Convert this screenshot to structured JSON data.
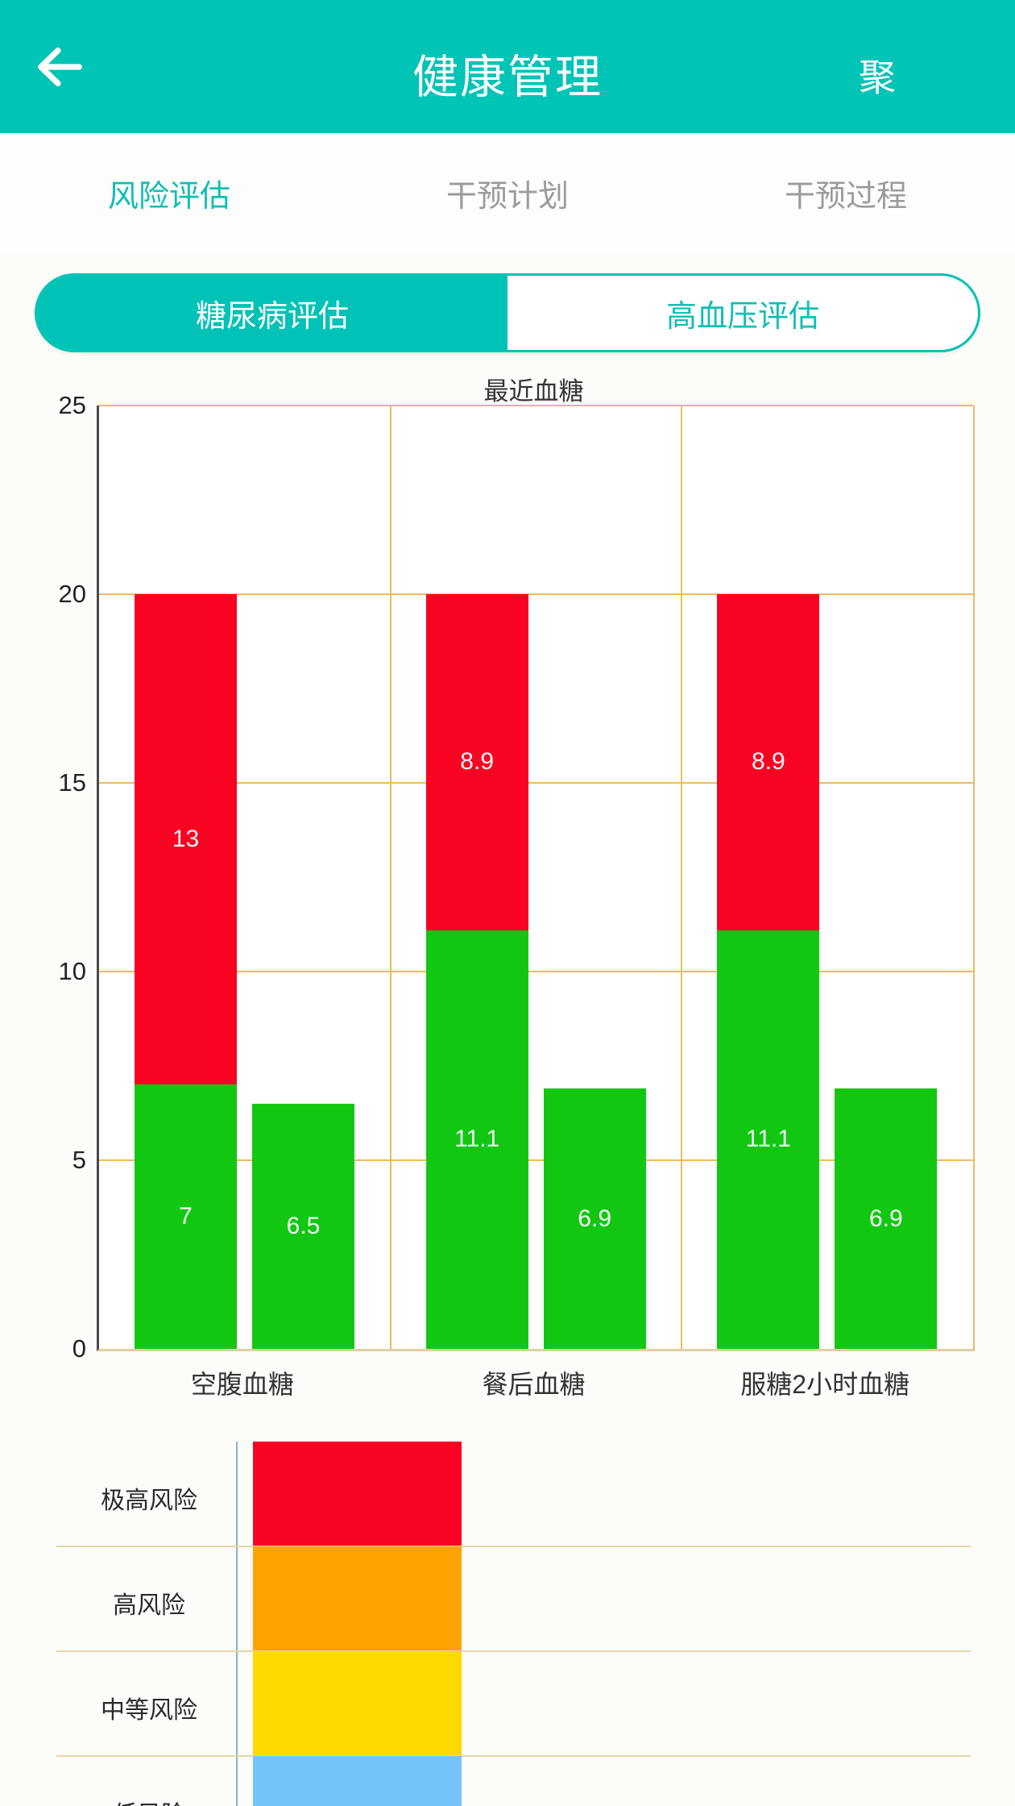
{
  "header": {
    "title": "健康管理",
    "back_icon": "arrow-left",
    "action_label": "聚"
  },
  "tabs": {
    "items": [
      {
        "label": "风险评估",
        "active": true
      },
      {
        "label": "干预计划",
        "active": false
      },
      {
        "label": "干预过程",
        "active": false
      }
    ]
  },
  "segmented": {
    "options": [
      {
        "label": "糖尿病评估",
        "active": true
      },
      {
        "label": "高血压评估",
        "active": false
      }
    ]
  },
  "colors": {
    "accent_teal": "#00C2B6",
    "header_teal": "#00C4B6",
    "tab_inactive": "#9B9B9B",
    "bar_red": "#F90323",
    "bar_green": "#12C712",
    "risk_orange": "#FFA300",
    "risk_yellow": "#FFD900",
    "risk_blue": "#74C3FA",
    "gridline": "#EDBA60",
    "separator": "#E5D6A6",
    "y_axis_line": "#4A4A4A",
    "risk_axis_line": "#8FB0BC"
  },
  "chart_data": [
    {
      "type": "bar",
      "title": "最近血糖",
      "xlabel": "",
      "ylabel": "",
      "ylim": [
        0,
        25
      ],
      "yticks": [
        0,
        5,
        10,
        15,
        20,
        25
      ],
      "grid": true,
      "legend_position": "none",
      "categories": [
        "空腹血糖",
        "餐后血糖",
        "服糖2小时血糖"
      ],
      "series": [
        {
          "name": "stacked-lower-green",
          "color": "#12C712",
          "values": [
            7,
            11.1,
            11.1
          ]
        },
        {
          "name": "stacked-upper-red",
          "color": "#F90323",
          "values": [
            13,
            8.9,
            8.9
          ]
        },
        {
          "name": "single-green",
          "color": "#12C712",
          "values": [
            6.5,
            6.9,
            6.9
          ]
        }
      ],
      "bar_value_labels": [
        [
          "7",
          "11.1",
          "11.1"
        ],
        [
          "13",
          "8.9",
          "8.9"
        ],
        [
          "6.5",
          "6.9",
          "6.9"
        ]
      ]
    },
    {
      "type": "bar",
      "subtype": "risk-level-bands",
      "title": "",
      "categories": [
        "极高风险",
        "高风险",
        "中等风险",
        "低风险"
      ],
      "band_colors": [
        "#F90323",
        "#FFA300",
        "#FFD900",
        "#74C3FA"
      ],
      "note_visible_portion": "bottom band partially cut off by screen edge"
    }
  ],
  "risk_legend": {
    "rows": [
      {
        "label": "极高风险",
        "color": "#F90323"
      },
      {
        "label": "高风险",
        "color": "#FFA300"
      },
      {
        "label": "中等风险",
        "color": "#FFD900"
      },
      {
        "label": "低风险",
        "color": "#74C3FA"
      }
    ]
  }
}
